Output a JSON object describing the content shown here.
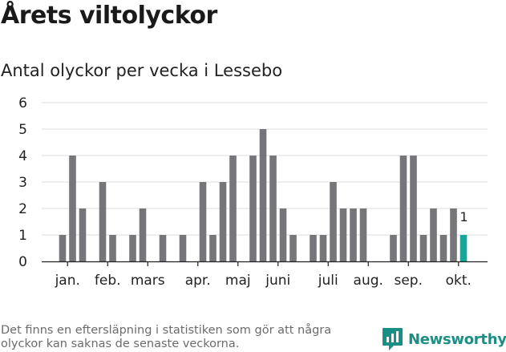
{
  "title": "Årets viltolyckor",
  "subtitle": "Antal olyckor per vecka i Lessebo",
  "footnote": "Det finns en eftersläpning i statistiken som gör att några olyckor kan saknas de senaste veckorna.",
  "brand": {
    "name": "Newsworthy",
    "icon": "newsworthy-logo-icon",
    "color": "#1a8f86"
  },
  "chart_data": {
    "type": "bar",
    "title": "Antal olyckor per vecka i Lessebo",
    "xlabel": "",
    "ylabel": "",
    "ylim": [
      0,
      6
    ],
    "yticks": [
      0,
      1,
      2,
      3,
      4,
      5,
      6
    ],
    "grid": true,
    "weeks": [
      1,
      2,
      3,
      4,
      5,
      6,
      7,
      8,
      9,
      10,
      11,
      12,
      13,
      14,
      15,
      16,
      17,
      18,
      19,
      20,
      21,
      22,
      23,
      24,
      25,
      26,
      27,
      28,
      29,
      30,
      31,
      32,
      33,
      34,
      35,
      36,
      37,
      38,
      39,
      40,
      41
    ],
    "values": [
      1,
      4,
      2,
      0,
      3,
      1,
      0,
      1,
      2,
      0,
      1,
      0,
      1,
      0,
      3,
      1,
      3,
      4,
      0,
      4,
      5,
      4,
      2,
      1,
      0,
      1,
      1,
      3,
      2,
      2,
      2,
      0,
      0,
      1,
      4,
      4,
      1,
      2,
      1,
      2,
      1
    ],
    "month_labels": [
      {
        "label": "jan.",
        "week": 1.5
      },
      {
        "label": "feb.",
        "week": 5.5
      },
      {
        "label": "mars",
        "week": 9.5
      },
      {
        "label": "apr.",
        "week": 14.5
      },
      {
        "label": "maj",
        "week": 18.5
      },
      {
        "label": "juni",
        "week": 22.5
      },
      {
        "label": "juli",
        "week": 27.5
      },
      {
        "label": "aug.",
        "week": 31.5
      },
      {
        "label": "sep.",
        "week": 35.5
      },
      {
        "label": "okt.",
        "week": 40.5
      }
    ],
    "highlight_week": 41,
    "highlight_label": "1",
    "colors": {
      "bar": "#76767a",
      "highlight": "#17a79a",
      "grid": "#dedede",
      "axis": "#222222",
      "text": "#222222"
    }
  }
}
